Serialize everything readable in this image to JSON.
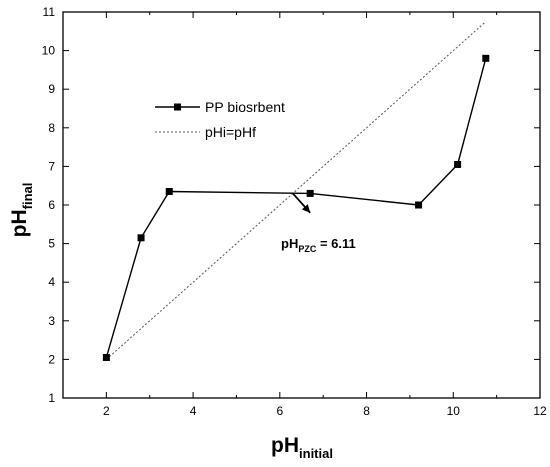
{
  "chart_data": {
    "type": "line",
    "title": "",
    "xlabel": {
      "main": "pH",
      "sub": "initial"
    },
    "ylabel": {
      "main": "pH",
      "sub": "final"
    },
    "xlim": [
      1,
      12
    ],
    "ylim": [
      1,
      11
    ],
    "xticks": [
      2,
      4,
      6,
      8,
      10,
      12
    ],
    "yticks": [
      1,
      2,
      3,
      4,
      5,
      6,
      7,
      8,
      9,
      10,
      11
    ],
    "grid": false,
    "legend_position": "upper-left",
    "series": [
      {
        "name": "PP biosrbent",
        "style": "solid line with square markers",
        "color": "#000000",
        "x": [
          2.0,
          2.8,
          3.45,
          6.7,
          9.2,
          10.1,
          10.75
        ],
        "y": [
          2.05,
          5.15,
          6.35,
          6.3,
          6.0,
          7.05,
          9.8
        ]
      },
      {
        "name": "pHi=pHf",
        "style": "dashed line",
        "color": "#555555",
        "x": [
          2.0,
          10.75
        ],
        "y": [
          2.0,
          10.75
        ]
      }
    ],
    "annotation": {
      "main": "pH",
      "sub": "PZC",
      "value_text": " = 6.11",
      "value": 6.11,
      "arrow_from": [
        6.3,
        6.3
      ],
      "arrow_to": [
        6.7,
        5.8
      ]
    }
  }
}
